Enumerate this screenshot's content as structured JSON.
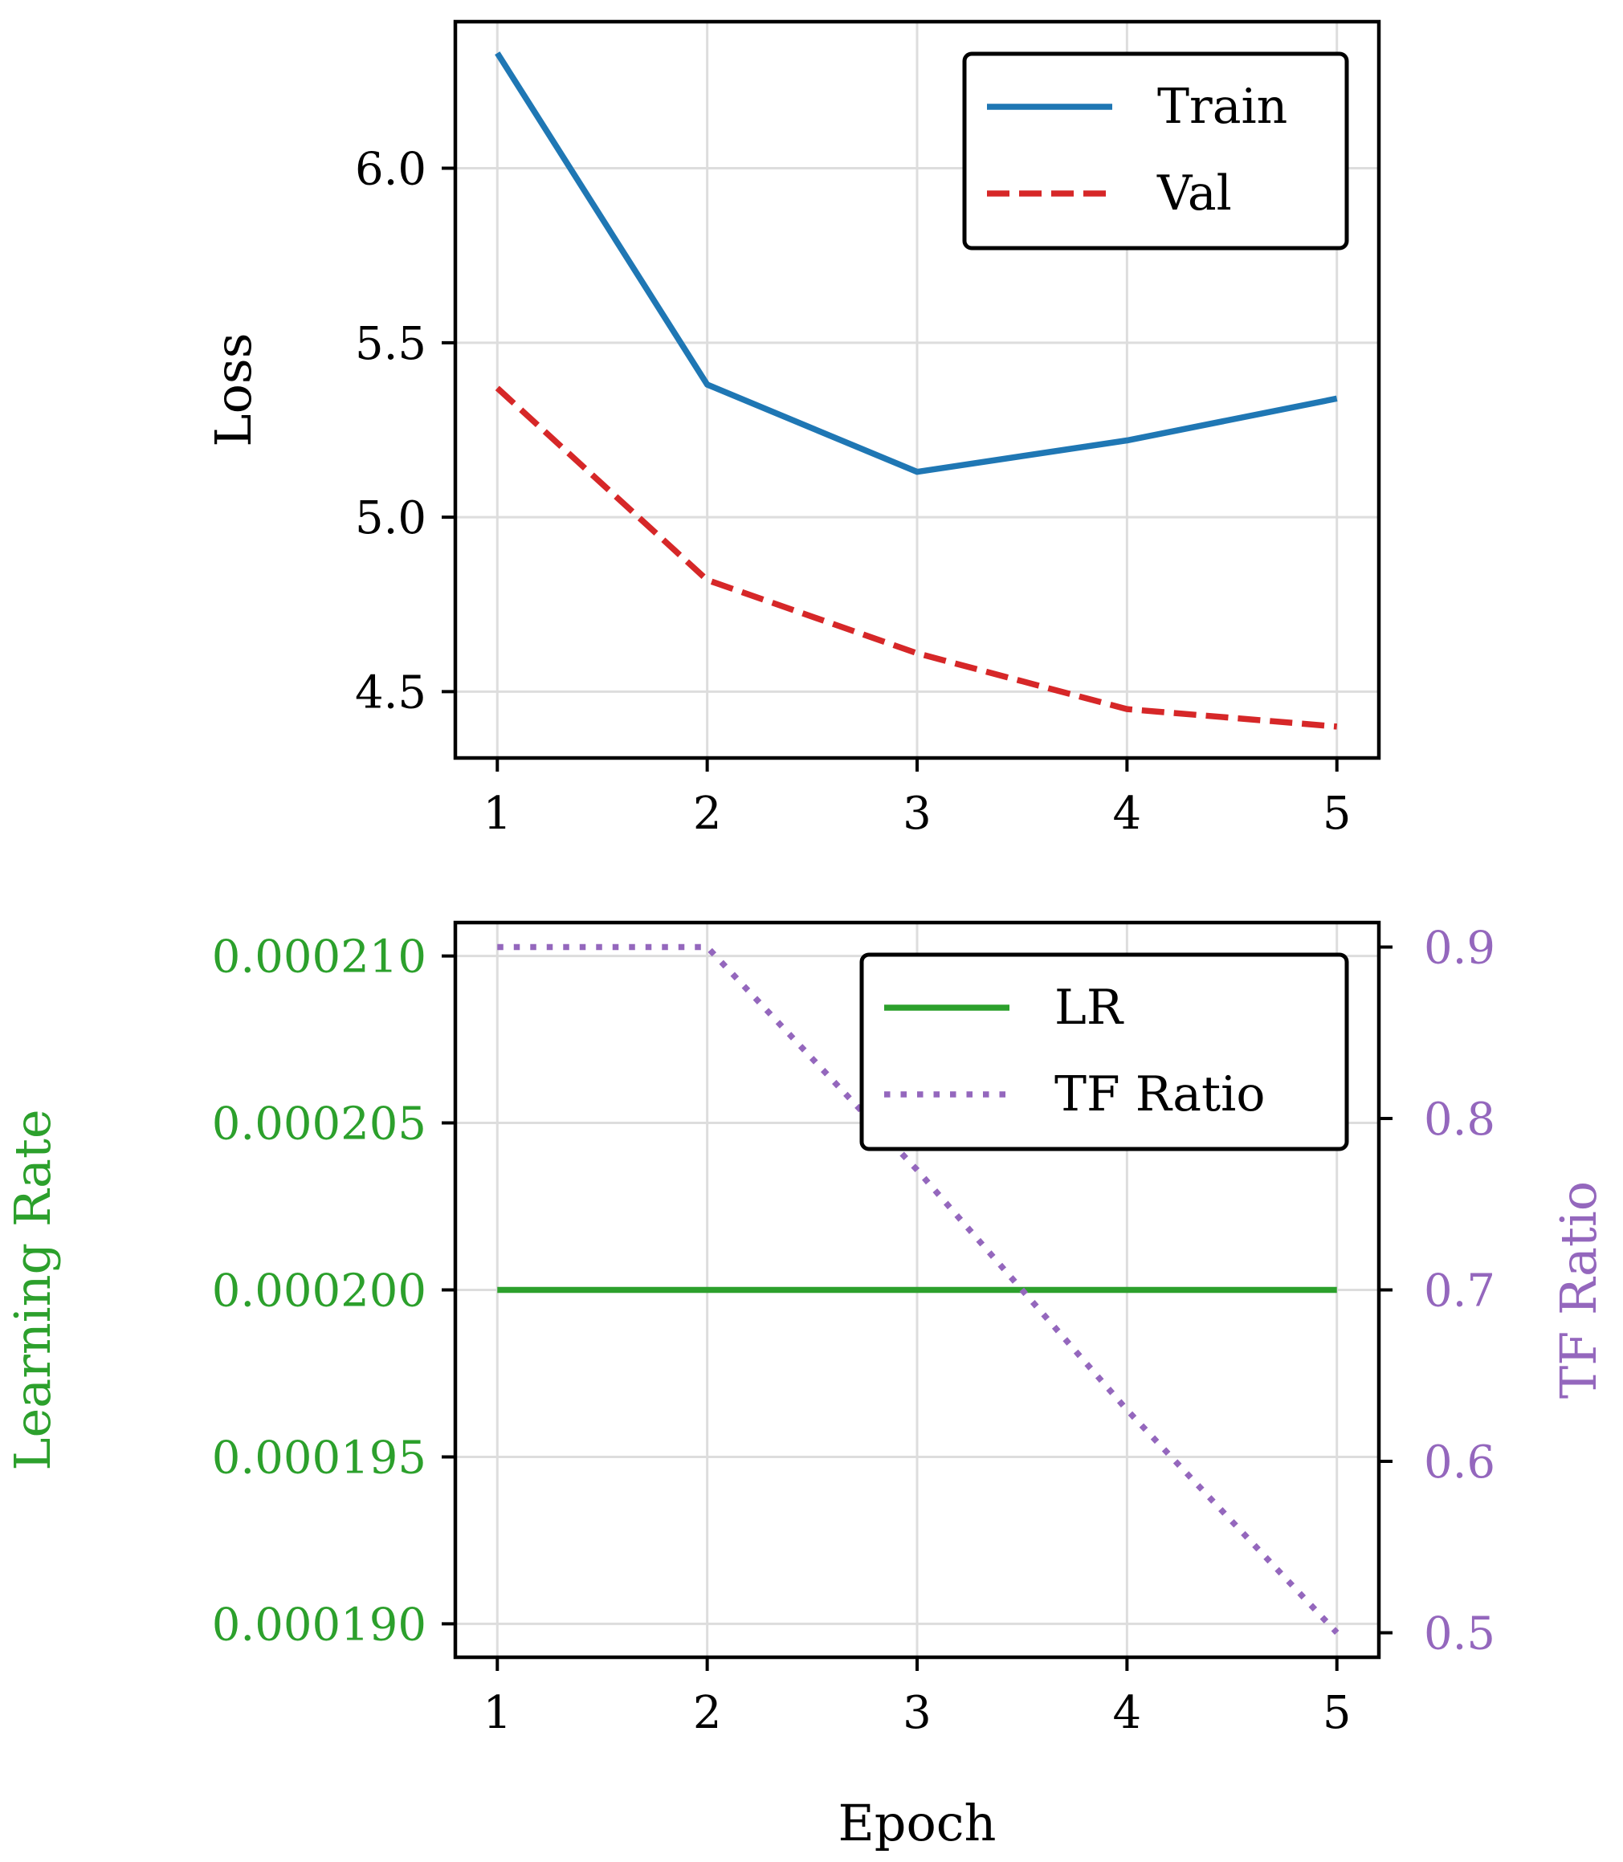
{
  "colors": {
    "train": "#1f77b4",
    "val": "#d62728",
    "lr": "#2ca02c",
    "tf": "#9467bd",
    "axis": "#000000",
    "grid": "#dddddd"
  },
  "chart_data": [
    {
      "type": "line",
      "x": [
        1,
        2,
        3,
        4,
        5
      ],
      "xticks": [
        "1",
        "2",
        "3",
        "4",
        "5"
      ],
      "xlim": [
        0.8,
        5.2
      ],
      "ylabel": "Loss",
      "ylim": [
        4.31,
        6.42
      ],
      "yticks": [
        4.5,
        5.0,
        5.5,
        6.0
      ],
      "ytick_labels": [
        "4.5",
        "5.0",
        "5.5",
        "6.0"
      ],
      "grid": true,
      "legend_position": "top-right",
      "series": [
        {
          "name": "Train",
          "values": [
            6.33,
            5.38,
            5.13,
            5.22,
            5.34
          ],
          "style": "solid",
          "color": "#1f77b4"
        },
        {
          "name": "Val",
          "values": [
            5.37,
            4.82,
            4.61,
            4.45,
            4.4
          ],
          "style": "dashed",
          "color": "#d62728"
        }
      ]
    },
    {
      "type": "line",
      "x": [
        1,
        2,
        3,
        4,
        5
      ],
      "xticks": [
        "1",
        "2",
        "3",
        "4",
        "5"
      ],
      "xlim": [
        0.8,
        5.2
      ],
      "xlabel": "Epoch",
      "ylabel": "Learning Rate",
      "ylim": [
        0.000189,
        0.000211
      ],
      "yticks": [
        0.00019,
        0.000195,
        0.0002,
        0.000205,
        0.00021
      ],
      "ytick_labels": [
        "0.000190",
        "0.000195",
        "0.000200",
        "0.000205",
        "0.000210"
      ],
      "y2label": "TF Ratio",
      "y2lim": [
        0.4857,
        0.9143
      ],
      "y2ticks": [
        0.5,
        0.6,
        0.7,
        0.8,
        0.9
      ],
      "y2tick_labels": [
        "0.5",
        "0.6",
        "0.7",
        "0.8",
        "0.9"
      ],
      "grid": true,
      "legend_position": "top-right",
      "series": [
        {
          "name": "LR",
          "axis": "left",
          "values": [
            0.0002,
            0.0002,
            0.0002,
            0.0002,
            0.0002
          ],
          "style": "solid",
          "color": "#2ca02c"
        },
        {
          "name": "TF Ratio",
          "axis": "right",
          "values": [
            0.9,
            0.9,
            0.77,
            0.63,
            0.5
          ],
          "style": "dotted",
          "color": "#9467bd"
        }
      ]
    }
  ]
}
